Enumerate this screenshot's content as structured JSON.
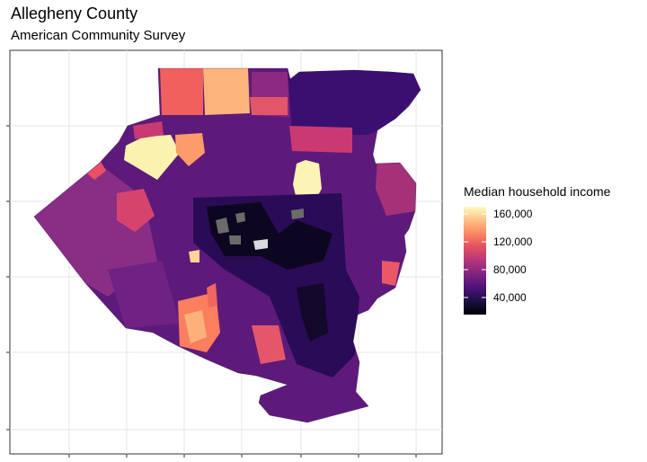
{
  "title": "Allegheny County",
  "subtitle": "American Community Survey",
  "legend": {
    "title": "Median household income",
    "ticks": [
      {
        "label": "160,000",
        "value": 160000
      },
      {
        "label": "120,000",
        "value": 120000
      },
      {
        "label": "80,000",
        "value": 80000
      },
      {
        "label": "40,000",
        "value": 40000
      }
    ],
    "range": [
      20000,
      170000
    ],
    "palette": "magma"
  },
  "colors": {
    "background": "#ffffff",
    "panel_border": "#333333",
    "gridline": "#e6e6e6",
    "missing": "#6b6b6b"
  },
  "map": {
    "region": "Allegheny County",
    "grid": true,
    "axis_labels_shown": false
  }
}
